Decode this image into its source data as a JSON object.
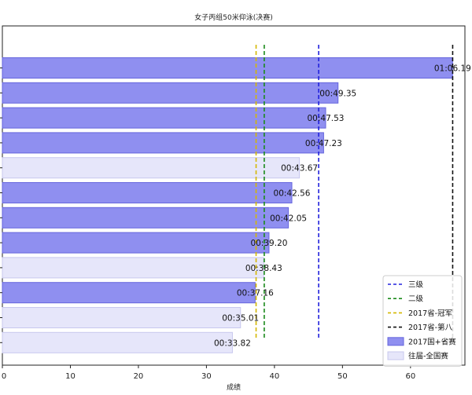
{
  "chart_data": {
    "type": "bar",
    "orientation": "horizontal",
    "title": "女子丙组50米仰泳(决赛)",
    "xlabel": "成绩",
    "ylabel": "",
    "xlim": [
      0,
      68
    ],
    "xticks": [
      0,
      10,
      20,
      30,
      40,
      50,
      60
    ],
    "grid": false,
    "legend_position": "lower-right",
    "bars": [
      {
        "value": 66.19,
        "label": "01:06.19",
        "group": "2017国+省赛"
      },
      {
        "value": 49.35,
        "label": "00:49.35",
        "group": "2017国+省赛"
      },
      {
        "value": 47.53,
        "label": "00:47.53",
        "group": "2017国+省赛"
      },
      {
        "value": 47.23,
        "label": "00:47.23",
        "group": "2017国+省赛"
      },
      {
        "value": 43.67,
        "label": "00:43.67",
        "group": "往届-全国赛"
      },
      {
        "value": 42.56,
        "label": "00:42.56",
        "group": "2017国+省赛"
      },
      {
        "value": 42.05,
        "label": "00:42.05",
        "group": "2017国+省赛"
      },
      {
        "value": 39.2,
        "label": "00:39.20",
        "group": "2017国+省赛"
      },
      {
        "value": 38.43,
        "label": "00:38.43",
        "group": "往届-全国赛"
      },
      {
        "value": 37.16,
        "label": "00:37.16",
        "group": "2017国+省赛"
      },
      {
        "value": 35.01,
        "label": "00:35.01",
        "group": "往届-全国赛"
      },
      {
        "value": 33.82,
        "label": "00:33.82",
        "group": "往届-全国赛"
      }
    ],
    "reference_lines": [
      {
        "name": "三级",
        "value": 46.5,
        "color": "#2222dd"
      },
      {
        "name": "二级",
        "value": 38.5,
        "color": "#1a8a1a"
      },
      {
        "name": "2017省-冠军",
        "value": 37.3,
        "color": "#d4b800"
      },
      {
        "name": "2017省-第八",
        "value": 66.2,
        "color": "#111111"
      }
    ],
    "groups": [
      {
        "name": "2017国+省赛",
        "fill": "#8f8ff0",
        "stroke": "#6666dd"
      },
      {
        "name": "往届-全国赛",
        "fill": "#e6e6fa",
        "stroke": "#c8c8ee"
      }
    ]
  }
}
